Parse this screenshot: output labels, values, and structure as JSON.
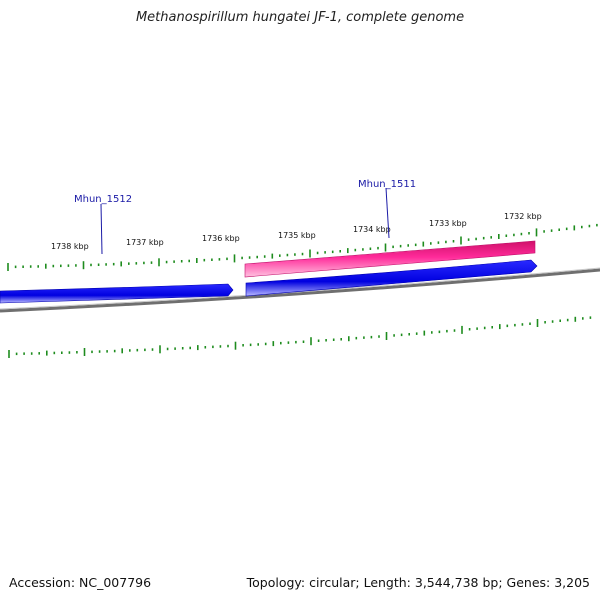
{
  "title": "Methanospirillum hungatei JF-1, complete genome",
  "accession": "Accession: NC_007796",
  "summary": "Topology: circular; Length: 3,544,738 bp; Genes: 3,205",
  "colors": {
    "forward_gene": "#0000ff",
    "reverse_gene": "#ff1493",
    "backbone": "#808080",
    "ticks": "#1e8c1e",
    "label_line": "#1a1aa6"
  },
  "scale_labels": [
    "1738 kbp",
    "1737 kbp",
    "1736 kbp",
    "1735 kbp",
    "1734 kbp",
    "1733 kbp",
    "1732 kbp"
  ],
  "genes": [
    {
      "name": "Mhun_1512",
      "strand": "forward",
      "label": "Mhun_1512"
    },
    {
      "name": "Mhun_1511",
      "strand": "forward",
      "label": "Mhun_1511"
    },
    {
      "name": "reverse_gene",
      "strand": "reverse",
      "label": ""
    }
  ]
}
